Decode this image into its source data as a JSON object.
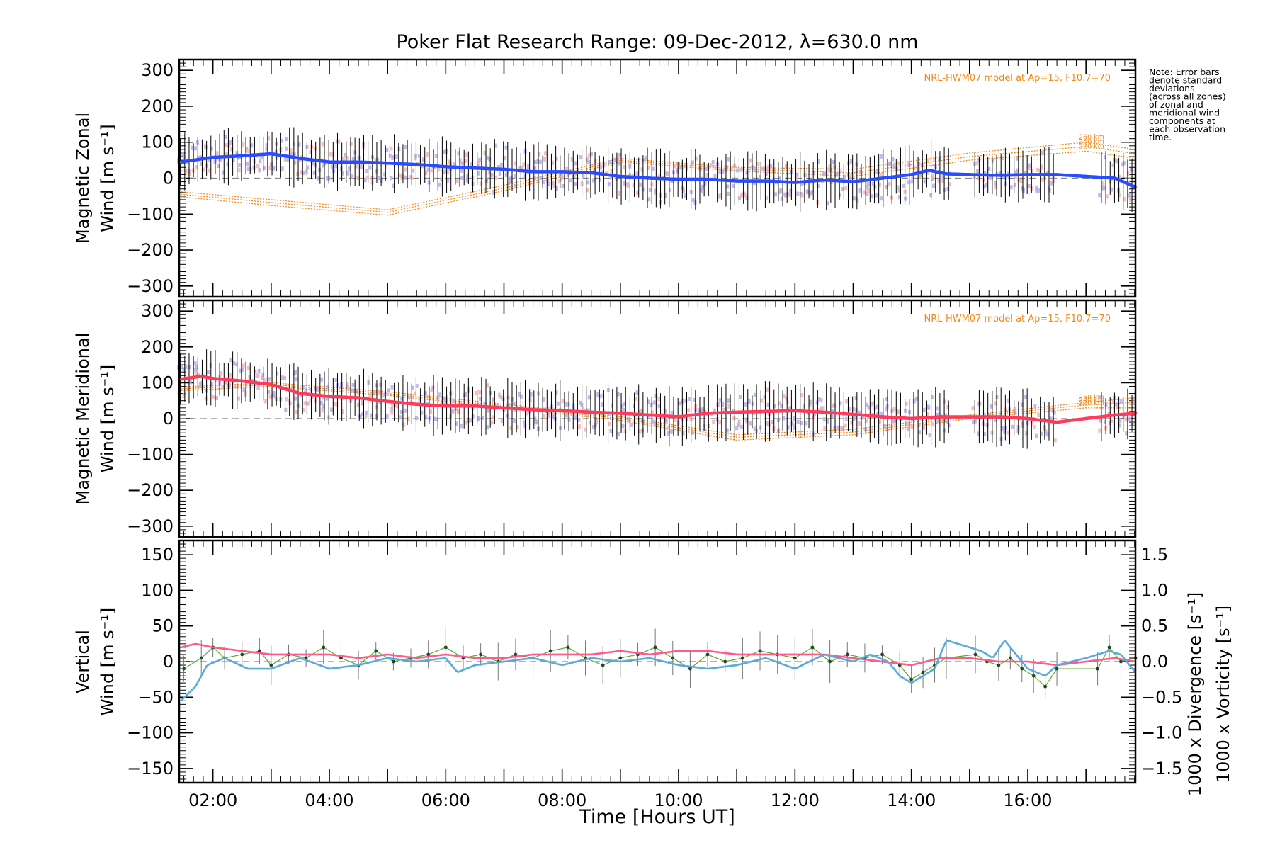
{
  "figure": {
    "title": "Poker Flat Research Range: 09-Dec-2012, λ=630.0 nm",
    "xlabel": "Time [Hours UT]",
    "x_ticks": [
      "02:00",
      "04:00",
      "06:00",
      "08:00",
      "10:00",
      "12:00",
      "14:00",
      "16:00"
    ],
    "x_tick_hours": [
      2,
      4,
      6,
      8,
      10,
      12,
      14,
      16
    ],
    "x_range_hours": [
      1.42,
      17.85
    ],
    "note_lines": [
      "Note: Error bars",
      "denote standard",
      "deviations",
      "(across all zones)",
      "of zonal and",
      "meridional wind",
      "components at",
      "each observation",
      "time."
    ]
  },
  "colors": {
    "zonal_line": "#2a4cff",
    "zonal_obs": "#5aaadc",
    "meridional_line": "#ff3a5a",
    "model": "#f28a1e",
    "vertical": "#5caa28",
    "divergence": "#5aaadc",
    "vorticity": "#ff5a8c",
    "zone_scatter_a": "#b8b0e6",
    "zone_scatter_b": "#f4b6b0",
    "errorbar": "#000000"
  },
  "chart_data": [
    {
      "type": "line",
      "panel": "zonal",
      "ylabel_line1": "Magnetic Zonal",
      "ylabel_line2": "Wind [m s⁻¹]",
      "ylim": [
        -330,
        330
      ],
      "yticks": [
        -300,
        -200,
        -100,
        0,
        100,
        200,
        300
      ],
      "model_label": "NRL-HWM07 model at Ap=15, F10.7=70",
      "series": [
        {
          "name": "Magnetic Zonal Wind",
          "x": [
            1.45,
            2.0,
            2.5,
            3.0,
            3.5,
            4.0,
            4.5,
            5.0,
            5.5,
            6.0,
            6.5,
            7.0,
            7.5,
            8.0,
            8.5,
            9.0,
            9.5,
            10.0,
            10.5,
            11.0,
            11.5,
            12.0,
            12.5,
            13.0,
            13.5,
            14.0,
            14.3,
            14.6,
            15.0,
            15.5,
            16.0,
            16.5,
            17.0,
            17.5,
            17.85
          ],
          "y": [
            45,
            58,
            62,
            68,
            55,
            45,
            45,
            42,
            38,
            32,
            28,
            25,
            18,
            18,
            15,
            5,
            0,
            -3,
            -3,
            -8,
            -8,
            -12,
            -5,
            -10,
            0,
            10,
            22,
            12,
            10,
            8,
            10,
            10,
            5,
            0,
            -25
          ]
        }
      ],
      "model": [
        {
          "altitude": "260 km",
          "x": [
            1.45,
            3.0,
            5.0,
            7.0,
            9.0,
            11.0,
            13.0,
            15.0,
            17.0,
            17.85
          ],
          "y": [
            -38,
            -60,
            -88,
            -20,
            55,
            30,
            25,
            70,
            100,
            80
          ]
        },
        {
          "altitude": "240 km",
          "x": [
            1.45,
            3.0,
            5.0,
            7.0,
            9.0,
            11.0,
            13.0,
            15.0,
            17.0,
            17.85
          ],
          "y": [
            -45,
            -68,
            -95,
            -28,
            50,
            25,
            15,
            60,
            88,
            68
          ]
        },
        {
          "altitude": "220 km",
          "x": [
            1.45,
            3.0,
            5.0,
            7.0,
            9.0,
            11.0,
            13.0,
            15.0,
            17.0,
            17.85
          ],
          "y": [
            -52,
            -76,
            -103,
            -35,
            45,
            20,
            5,
            50,
            75,
            55
          ]
        }
      ]
    },
    {
      "type": "line",
      "panel": "meridional",
      "ylabel_line1": "Magnetic Meridional",
      "ylabel_line2": "Wind [m s⁻¹]",
      "ylim": [
        -330,
        330
      ],
      "yticks": [
        -300,
        -200,
        -100,
        0,
        100,
        200,
        300
      ],
      "model_label": "NRL-HWM07 model at Ap=15, F10.7=70",
      "series": [
        {
          "name": "Magnetic Meridional Wind",
          "x": [
            1.45,
            1.8,
            2.0,
            2.5,
            3.0,
            3.5,
            4.0,
            4.5,
            5.0,
            5.5,
            6.0,
            6.5,
            7.0,
            7.5,
            8.0,
            8.5,
            9.0,
            9.5,
            10.0,
            10.5,
            11.0,
            11.5,
            12.0,
            12.5,
            13.0,
            13.5,
            14.0,
            14.5,
            15.0,
            15.5,
            16.0,
            16.5,
            17.0,
            17.5,
            17.85
          ],
          "y": [
            110,
            118,
            112,
            105,
            95,
            70,
            62,
            58,
            48,
            40,
            35,
            35,
            30,
            25,
            22,
            18,
            15,
            10,
            5,
            15,
            18,
            20,
            22,
            18,
            12,
            5,
            0,
            5,
            5,
            5,
            0,
            -10,
            0,
            10,
            15
          ]
        }
      ],
      "model": [
        {
          "altitude": "260 km",
          "x": [
            1.45,
            3.0,
            5.0,
            7.0,
            9.0,
            11.0,
            13.0,
            15.0,
            17.0,
            17.85
          ],
          "y": [
            88,
            100,
            75,
            40,
            5,
            -45,
            -30,
            10,
            45,
            58
          ]
        },
        {
          "altitude": "240 km",
          "x": [
            1.45,
            3.0,
            5.0,
            7.0,
            9.0,
            11.0,
            13.0,
            15.0,
            17.0,
            17.85
          ],
          "y": [
            83,
            95,
            70,
            35,
            0,
            -52,
            -38,
            5,
            38,
            45
          ]
        },
        {
          "altitude": "220 km",
          "x": [
            1.45,
            3.0,
            5.0,
            7.0,
            9.0,
            11.0,
            13.0,
            15.0,
            17.0,
            17.85
          ],
          "y": [
            78,
            90,
            65,
            30,
            -5,
            -60,
            -45,
            0,
            30,
            30
          ]
        }
      ]
    },
    {
      "type": "line",
      "panel": "vertical",
      "ylabel_line1": "Vertical",
      "ylabel_line2": "Wind [m s⁻¹]",
      "right_ylabel_1": "1000 x Divergence [s⁻¹]",
      "right_ylabel_2": "1000 x Vorticity [s⁻¹]",
      "ylim": [
        -170,
        170
      ],
      "yticks": [
        -150,
        -100,
        -50,
        0,
        50,
        100,
        150
      ],
      "y2lim": [
        -1.7,
        1.7
      ],
      "y2ticks": [
        "-1.5",
        "-1.0",
        "-0.5",
        "0.0",
        "0.5",
        "1.0",
        "1.5"
      ],
      "series": [
        {
          "name": "Vertical Wind",
          "x": [
            1.5,
            1.8,
            2.0,
            2.2,
            2.5,
            2.8,
            3.0,
            3.3,
            3.6,
            3.9,
            4.2,
            4.5,
            4.8,
            5.1,
            5.4,
            5.7,
            6.0,
            6.3,
            6.6,
            6.9,
            7.2,
            7.5,
            7.8,
            8.1,
            8.4,
            8.7,
            9.0,
            9.3,
            9.6,
            9.9,
            10.2,
            10.5,
            10.8,
            11.1,
            11.4,
            11.7,
            12.0,
            12.3,
            12.6,
            12.9,
            13.2,
            13.5,
            13.8,
            14.0,
            14.2,
            14.4,
            14.6,
            15.1,
            15.3,
            15.5,
            15.7,
            15.9,
            16.1,
            16.3,
            16.5,
            17.2,
            17.4,
            17.6,
            17.85
          ],
          "y": [
            -10,
            5,
            20,
            5,
            10,
            15,
            -5,
            10,
            5,
            20,
            5,
            -5,
            15,
            0,
            5,
            10,
            20,
            5,
            10,
            0,
            10,
            5,
            15,
            20,
            5,
            -5,
            5,
            10,
            20,
            5,
            -10,
            10,
            0,
            5,
            15,
            10,
            5,
            20,
            0,
            10,
            5,
            10,
            -5,
            -25,
            -15,
            -5,
            5,
            10,
            0,
            -5,
            5,
            -10,
            -20,
            -35,
            -10,
            -10,
            20,
            0,
            5
          ]
        },
        {
          "name": "1000 x Divergence",
          "x": [
            1.45,
            1.7,
            1.9,
            2.2,
            2.6,
            3.0,
            3.5,
            4.0,
            4.5,
            5.0,
            5.5,
            6.0,
            6.2,
            6.5,
            7.0,
            7.5,
            8.0,
            8.5,
            9.0,
            9.5,
            10.0,
            10.5,
            11.0,
            11.5,
            12.0,
            12.5,
            13.0,
            13.3,
            13.6,
            13.8,
            14.0,
            14.2,
            14.4,
            14.6,
            15.0,
            15.2,
            15.4,
            15.6,
            15.8,
            16.0,
            16.3,
            16.5,
            17.0,
            17.4,
            17.6,
            17.85
          ],
          "y": [
            -0.55,
            -0.35,
            -0.05,
            0.05,
            -0.1,
            -0.1,
            0.05,
            -0.1,
            -0.05,
            0.05,
            0.0,
            0.05,
            -0.15,
            -0.05,
            0.0,
            0.05,
            -0.05,
            0.05,
            0.0,
            0.05,
            -0.05,
            -0.1,
            -0.05,
            0.05,
            -0.1,
            0.1,
            0.0,
            0.1,
            0.0,
            -0.2,
            -0.3,
            -0.2,
            -0.1,
            0.3,
            0.2,
            0.15,
            0.05,
            0.3,
            0.1,
            -0.1,
            -0.2,
            -0.05,
            0.05,
            0.15,
            0.1,
            -0.15
          ]
        },
        {
          "name": "1000 x Vorticity",
          "x": [
            1.45,
            1.7,
            2.0,
            2.5,
            3.0,
            3.5,
            4.0,
            4.5,
            5.0,
            5.5,
            6.0,
            6.5,
            7.0,
            7.5,
            8.0,
            8.5,
            9.0,
            9.5,
            10.0,
            10.5,
            11.0,
            11.5,
            12.0,
            12.5,
            13.0,
            13.5,
            14.0,
            14.5,
            15.0,
            15.5,
            16.0,
            16.5,
            17.0,
            17.5,
            17.85
          ],
          "y": [
            0.2,
            0.25,
            0.2,
            0.15,
            0.1,
            0.1,
            0.1,
            0.05,
            0.1,
            0.05,
            0.1,
            0.05,
            0.05,
            0.1,
            0.1,
            0.1,
            0.15,
            0.1,
            0.15,
            0.15,
            0.1,
            0.1,
            0.1,
            0.1,
            0.05,
            0.0,
            -0.05,
            0.05,
            0.05,
            0.0,
            0.0,
            -0.05,
            0.0,
            0.05,
            0.0
          ]
        }
      ]
    }
  ]
}
